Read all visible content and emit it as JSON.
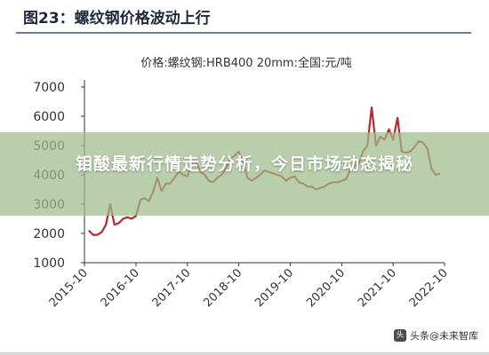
{
  "header": {
    "title": "图23：螺纹钢价格波动上行"
  },
  "overlay": {
    "headline": "钼酸最新行情走势分析，今日市场动态揭秘"
  },
  "watermark": {
    "text": "头条@未来智库"
  },
  "colors": {
    "series": "#b7282e",
    "axis": "#333333",
    "header_rule": "#6a7d96"
  },
  "chart_data": {
    "type": "line",
    "title": "",
    "xlabel": "",
    "ylabel": "",
    "ylim": [
      1000,
      7000
    ],
    "yticks": [
      1000,
      2000,
      3000,
      4000,
      5000,
      6000,
      7000
    ],
    "xlim": [
      "2015-10-01",
      "2022-10-01"
    ],
    "xticks": [
      "2015-10",
      "2016-10",
      "2017-10",
      "2018-10",
      "2019-10",
      "2020-10",
      "2021-10",
      "2022-10"
    ],
    "grid": false,
    "legend": "top-center",
    "series": [
      {
        "name": "价格:螺纹钢:HRB400 20mm:全国:元/吨",
        "color": "#b7282e",
        "points": [
          [
            "2015-11-01",
            2100
          ],
          [
            "2015-12-01",
            1950
          ],
          [
            "2016-01-01",
            1950
          ],
          [
            "2016-02-01",
            2050
          ],
          [
            "2016-03-01",
            2300
          ],
          [
            "2016-04-01",
            3000
          ],
          [
            "2016-05-01",
            2300
          ],
          [
            "2016-06-01",
            2350
          ],
          [
            "2016-07-01",
            2500
          ],
          [
            "2016-08-01",
            2550
          ],
          [
            "2016-09-01",
            2500
          ],
          [
            "2016-10-01",
            2600
          ],
          [
            "2016-11-01",
            3150
          ],
          [
            "2016-12-01",
            3200
          ],
          [
            "2017-01-01",
            3100
          ],
          [
            "2017-02-01",
            3450
          ],
          [
            "2017-03-01",
            3900
          ],
          [
            "2017-04-01",
            3450
          ],
          [
            "2017-05-01",
            3700
          ],
          [
            "2017-06-01",
            3700
          ],
          [
            "2017-07-01",
            3900
          ],
          [
            "2017-08-01",
            4100
          ],
          [
            "2017-09-01",
            4000
          ],
          [
            "2017-10-01",
            3950
          ],
          [
            "2017-11-01",
            4400
          ],
          [
            "2017-12-01",
            4450
          ],
          [
            "2018-01-01",
            4100
          ],
          [
            "2018-02-01",
            4000
          ],
          [
            "2018-03-01",
            3800
          ],
          [
            "2018-04-01",
            3750
          ],
          [
            "2018-05-01",
            3900
          ],
          [
            "2018-06-01",
            4000
          ],
          [
            "2018-07-01",
            4200
          ],
          [
            "2018-08-01",
            4550
          ],
          [
            "2018-09-01",
            4650
          ],
          [
            "2018-10-01",
            4800
          ],
          [
            "2018-11-01",
            4400
          ],
          [
            "2018-12-01",
            3900
          ],
          [
            "2019-01-01",
            3800
          ],
          [
            "2019-02-01",
            3900
          ],
          [
            "2019-03-01",
            4000
          ],
          [
            "2019-04-01",
            4150
          ],
          [
            "2019-05-01",
            4100
          ],
          [
            "2019-06-01",
            4050
          ],
          [
            "2019-07-01",
            4000
          ],
          [
            "2019-08-01",
            3950
          ],
          [
            "2019-09-01",
            3800
          ],
          [
            "2019-10-01",
            3900
          ],
          [
            "2019-11-01",
            3950
          ],
          [
            "2019-12-01",
            3750
          ],
          [
            "2020-01-01",
            3700
          ],
          [
            "2020-02-01",
            3600
          ],
          [
            "2020-03-01",
            3600
          ],
          [
            "2020-04-01",
            3500
          ],
          [
            "2020-05-01",
            3550
          ],
          [
            "2020-06-01",
            3600
          ],
          [
            "2020-07-01",
            3700
          ],
          [
            "2020-08-01",
            3750
          ],
          [
            "2020-09-01",
            3750
          ],
          [
            "2020-10-01",
            3800
          ],
          [
            "2020-11-01",
            3850
          ],
          [
            "2020-12-01",
            4200
          ],
          [
            "2021-01-01",
            4300
          ],
          [
            "2021-02-01",
            4400
          ],
          [
            "2021-03-01",
            4800
          ],
          [
            "2021-04-01",
            5000
          ],
          [
            "2021-05-01",
            6300
          ],
          [
            "2021-06-01",
            5000
          ],
          [
            "2021-07-01",
            5300
          ],
          [
            "2021-08-01",
            5200
          ],
          [
            "2021-09-01",
            5550
          ],
          [
            "2021-10-01",
            5200
          ],
          [
            "2021-11-01",
            5950
          ],
          [
            "2021-12-01",
            4800
          ],
          [
            "2022-01-01",
            4750
          ],
          [
            "2022-02-01",
            4800
          ],
          [
            "2022-03-01",
            4950
          ],
          [
            "2022-04-01",
            5150
          ],
          [
            "2022-05-01",
            5100
          ],
          [
            "2022-06-01",
            4900
          ],
          [
            "2022-07-01",
            4200
          ],
          [
            "2022-08-01",
            4000
          ],
          [
            "2022-09-01",
            4050
          ]
        ]
      }
    ]
  }
}
